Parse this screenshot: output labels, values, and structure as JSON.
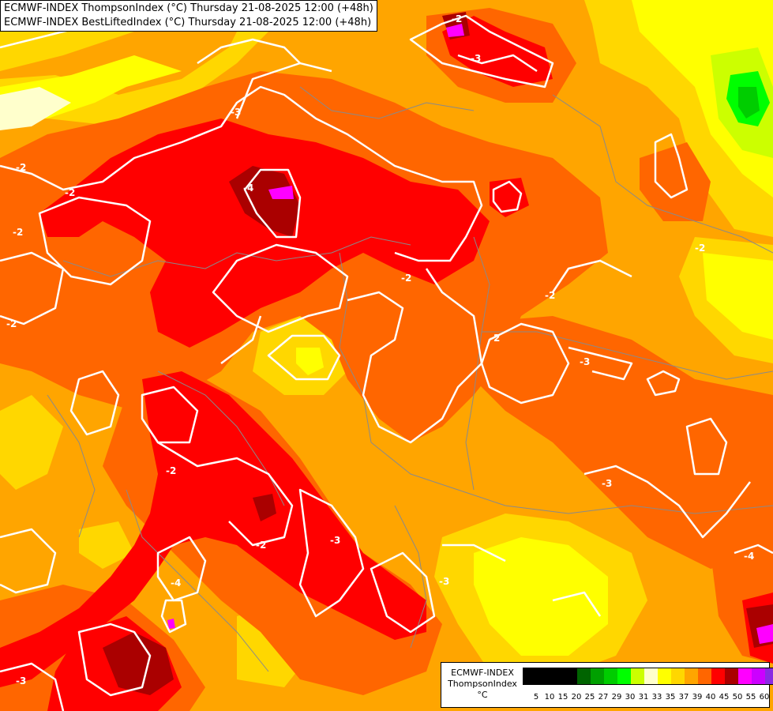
{
  "titles": {
    "line1": "ECMWF-INDEX ThompsonIndex (°C) Thursday 21-08-2025 12:00 (+48h)",
    "line2": "ECMWF-INDEX BestLiftedIndex (°C) Thursday 21-08-2025 12:00 (+48h)"
  },
  "legend": {
    "line1": "ECMWF-INDEX",
    "line2": "ThompsonIndex",
    "unit": "°C",
    "colors": [
      "#000000",
      "#000000",
      "#000000",
      "#000000",
      "#006400",
      "#00a000",
      "#00cd00",
      "#00ff00",
      "#ccff00",
      "#ffffcc",
      "#ffff00",
      "#ffd700",
      "#ffa500",
      "#ff6600",
      "#ff0000",
      "#aa0000",
      "#ff00ff",
      "#cc00ff",
      "#8a2be2",
      "#0000ff"
    ],
    "ticks": [
      "5",
      "10",
      "15",
      "20",
      "25",
      "27",
      "29",
      "30",
      "31",
      "33",
      "35",
      "37",
      "39",
      "40",
      "45",
      "50",
      "55",
      "60"
    ]
  },
  "contour_labels": [
    "-2",
    "-2",
    "-2",
    "-2",
    "-2",
    "-2",
    "-2",
    "-2",
    "-2",
    "-2",
    "-2",
    "-3",
    "-3",
    "-3",
    "-3",
    "-3",
    "-3",
    "-3",
    "-4",
    "-4",
    "-4"
  ]
}
